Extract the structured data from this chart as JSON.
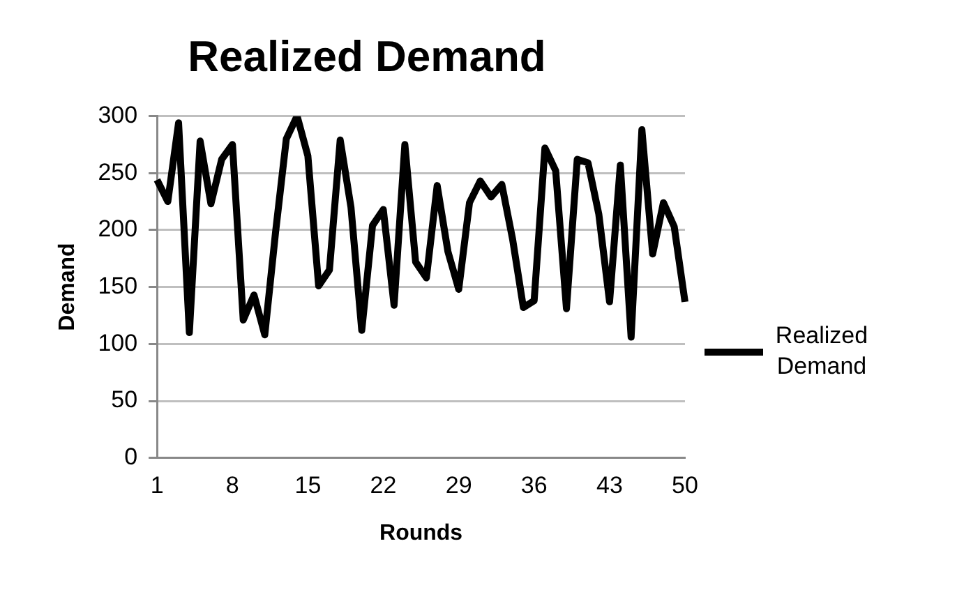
{
  "chart_data": {
    "type": "line",
    "title": "Realized Demand",
    "xlabel": "Rounds",
    "ylabel": "Demand",
    "categories": [
      "1",
      null,
      null,
      null,
      null,
      null,
      null,
      "8",
      null,
      null,
      null,
      null,
      null,
      null,
      "15",
      null,
      null,
      null,
      null,
      null,
      null,
      "22",
      null,
      null,
      null,
      null,
      null,
      null,
      "29",
      null,
      null,
      null,
      null,
      null,
      null,
      "36",
      null,
      null,
      null,
      null,
      null,
      null,
      "43",
      null,
      null,
      null,
      null,
      null,
      null,
      "50"
    ],
    "series": [
      {
        "name": "Realized Demand",
        "color": "#000000",
        "values": [
          244,
          225,
          294,
          110,
          278,
          223,
          262,
          275,
          121,
          143,
          108,
          198,
          280,
          300,
          265,
          151,
          165,
          279,
          220,
          112,
          204,
          218,
          134,
          275,
          172,
          158,
          239,
          181,
          148,
          224,
          243,
          229,
          240,
          192,
          132,
          138,
          272,
          252,
          131,
          262,
          259,
          214,
          137,
          257,
          106,
          288,
          179,
          224,
          203,
          137
        ]
      }
    ],
    "ylim": [
      0,
      300
    ],
    "yticks": [
      0,
      50,
      100,
      150,
      200,
      250,
      300
    ],
    "grid": "y",
    "legend": "right",
    "marker": "none",
    "line_style": "solid"
  }
}
